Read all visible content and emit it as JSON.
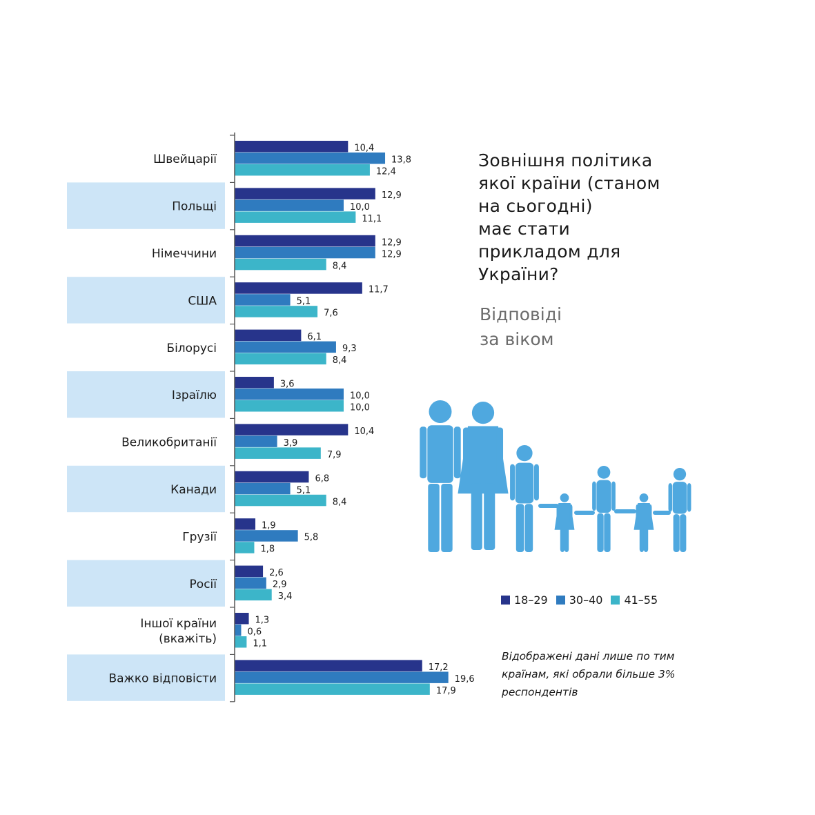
{
  "title": {
    "lines": [
      "Зовнішня політика",
      "якої країни (станом",
      "на сьогодні)",
      "має стати",
      "прикладом для",
      "України?"
    ]
  },
  "subtitle": {
    "lines": [
      "Відповіді",
      "за віком"
    ]
  },
  "note": {
    "lines": [
      "Відображені дані лише по тим",
      "країнам, які обрали більше 3%",
      "респондентів"
    ]
  },
  "colors": {
    "s1": "#27348b",
    "s2": "#2f7bbf",
    "s3": "#3cb5c9",
    "band": "#cde5f7",
    "axis": "#555555",
    "family": "#4fa8df"
  },
  "chart_data": {
    "type": "bar",
    "orientation": "horizontal",
    "title": "Зовнішня політика якої країни (станом на сьогодні) має стати прикладом для України?",
    "categories": [
      [
        "Швейцарії"
      ],
      [
        "Польщі"
      ],
      [
        "Німеччини"
      ],
      [
        "США"
      ],
      [
        "Білорусі"
      ],
      [
        "Ізраїлю"
      ],
      [
        "Великобританії"
      ],
      [
        "Канади"
      ],
      [
        "Грузії"
      ],
      [
        "Росії"
      ],
      [
        "Іншої країни",
        "(вкажіть)"
      ],
      [
        "Важко відповісти"
      ]
    ],
    "series": [
      {
        "name": "18–29",
        "values": [
          10.4,
          12.9,
          12.9,
          11.7,
          6.1,
          3.6,
          10.4,
          6.8,
          1.9,
          2.6,
          1.3,
          17.2
        ],
        "labels": [
          "10,4",
          "12,9",
          "12,9",
          "11,7",
          "6,1",
          "3,6",
          "10,4",
          "6,8",
          "1,9",
          "2,6",
          "1,3",
          "17,2"
        ]
      },
      {
        "name": "30–40",
        "values": [
          13.8,
          10.0,
          12.9,
          5.1,
          9.3,
          10.0,
          3.9,
          5.1,
          5.8,
          2.9,
          0.6,
          19.6
        ],
        "labels": [
          "13,8",
          "10,0",
          "12,9",
          "5,1",
          "9,3",
          "10,0",
          "3,9",
          "5,1",
          "5,8",
          "2,9",
          "0,6",
          "19,6"
        ]
      },
      {
        "name": "41–55",
        "values": [
          12.4,
          11.1,
          8.4,
          7.6,
          8.4,
          10.0,
          7.9,
          8.4,
          1.8,
          3.4,
          1.1,
          17.9
        ],
        "labels": [
          "12,4",
          "11,1",
          "8,4",
          "7,6",
          "8,4",
          "10,0",
          "7,9",
          "8,4",
          "1,8",
          "3,4",
          "1,1",
          "17,9"
        ]
      }
    ],
    "xlim": [
      0,
      20
    ],
    "grid": false,
    "legend": "bottom-right"
  }
}
